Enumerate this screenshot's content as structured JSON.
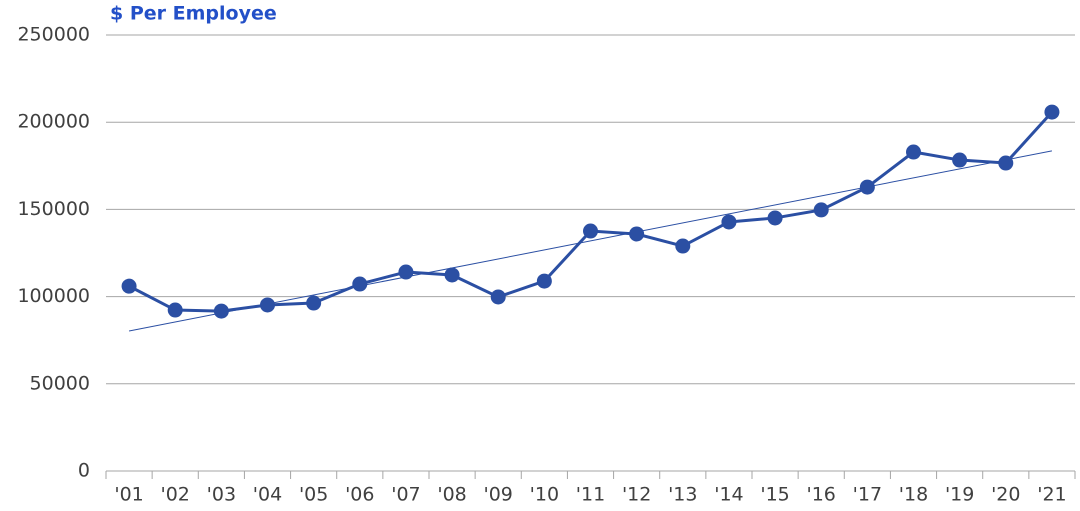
{
  "chart_data": {
    "type": "line",
    "title": "$ Per Employee",
    "categories": [
      "'01",
      "'02",
      "'03",
      "'04",
      "'05",
      "'06",
      "'07",
      "'08",
      "'09",
      "'10",
      "'11",
      "'12",
      "'13",
      "'14",
      "'15",
      "'16",
      "'17",
      "'18",
      "'19",
      "'20",
      "'21"
    ],
    "values": [
      106000,
      92300,
      91700,
      95200,
      96300,
      107200,
      114100,
      112400,
      99800,
      108900,
      137600,
      135900,
      129000,
      142800,
      145100,
      149700,
      162800,
      182900,
      178300,
      176600,
      205800
    ],
    "color": "#2b4fa3",
    "ylim": [
      0,
      250000
    ],
    "yticks": [
      0,
      50000,
      100000,
      150000,
      200000,
      250000
    ],
    "grid": true,
    "trendline": true
  }
}
